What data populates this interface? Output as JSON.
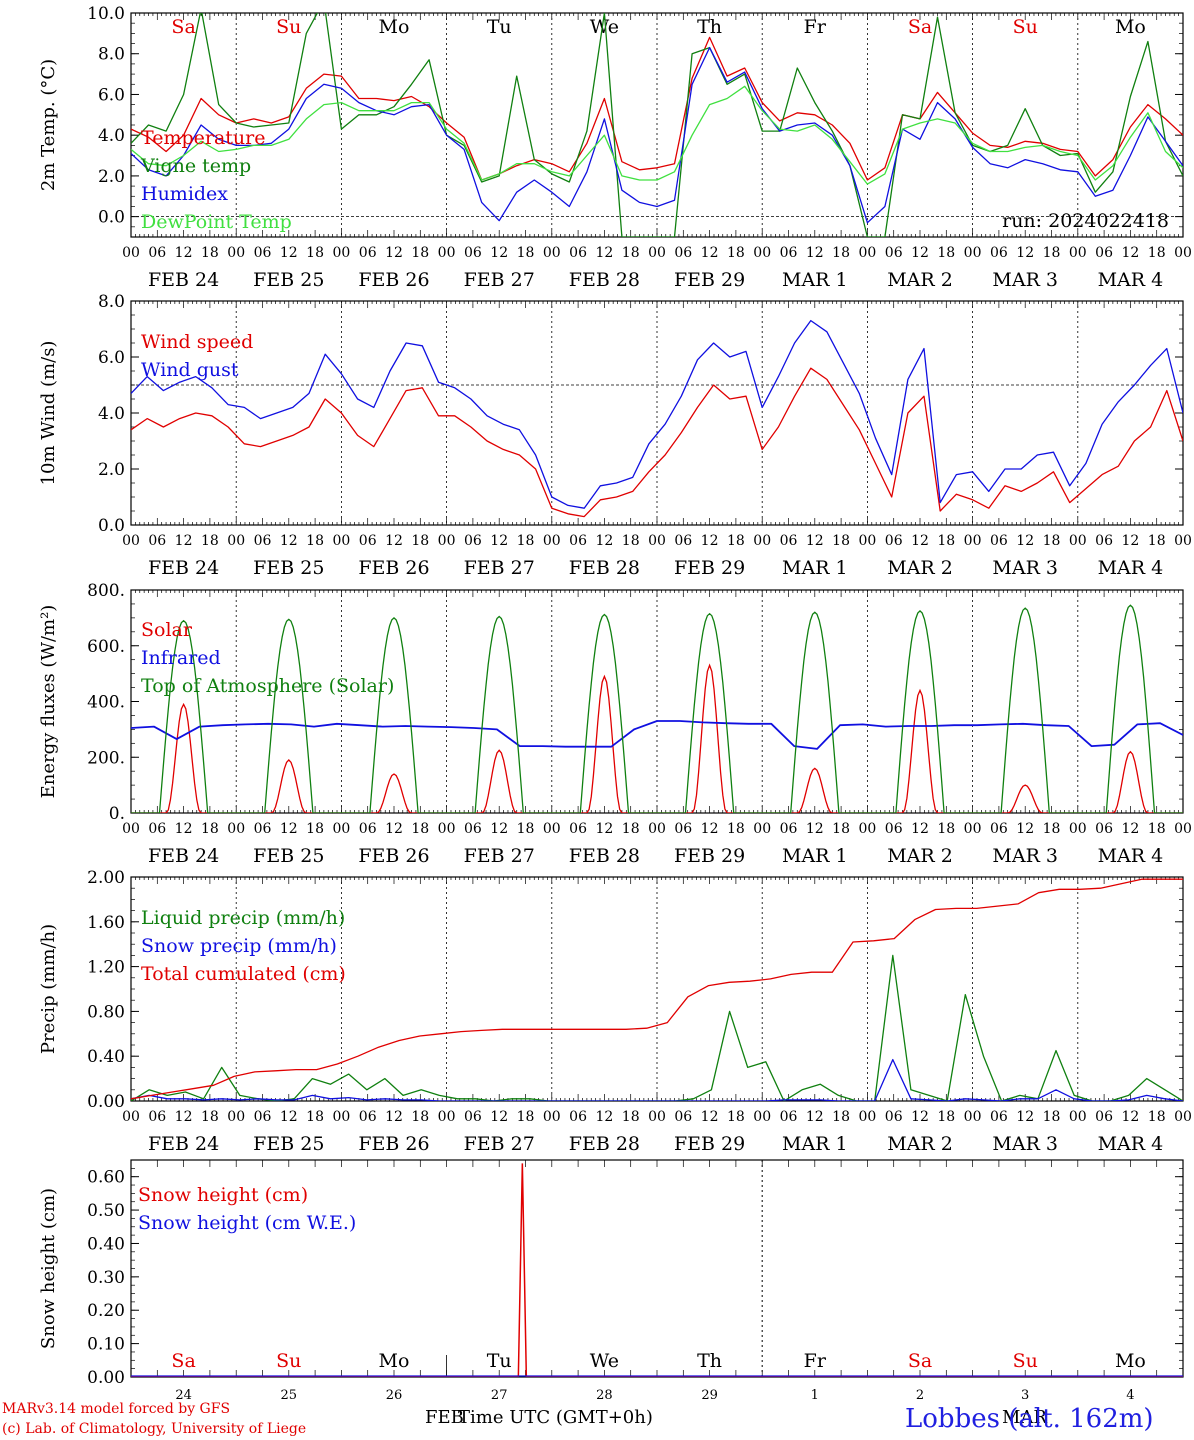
{
  "days": [
    "Sa",
    "Su",
    "Mo",
    "Tu",
    "We",
    "Th",
    "Fr",
    "Sa",
    "Su",
    "Mo"
  ],
  "day_colors": [
    "#e00000",
    "#e00000",
    "#000000",
    "#000000",
    "#000000",
    "#000000",
    "#000000",
    "#e00000",
    "#e00000",
    "#000000"
  ],
  "date_labels": [
    "FEB 24",
    "FEB 25",
    "FEB 26",
    "FEB 27",
    "FEB 28",
    "FEB 29",
    "MAR  1",
    "MAR  2",
    "MAR  3",
    "MAR  4"
  ],
  "hour_labels": [
    "00",
    "06",
    "12",
    "18"
  ],
  "last_hour_label": "00",
  "day_numbers": [
    "24",
    "25",
    "26",
    "27",
    "28",
    "29",
    "1",
    "2",
    "3",
    "4"
  ],
  "chart_data": [
    {
      "type": "line",
      "ylabel": "2m Temp. (°C)",
      "ylim": [
        -1,
        10
      ],
      "ticks": [
        "0.0",
        "2.0",
        "4.0",
        "6.0",
        "8.0",
        "10.0"
      ],
      "tick_values": [
        0,
        2,
        4,
        6,
        8,
        10
      ],
      "ref_line": 0,
      "run_label": "run: 2024022418",
      "series": [
        {
          "name": "Temperature",
          "color": "#e00000",
          "values": [
            4.3,
            3.9,
            3.2,
            4.0,
            5.8,
            5.0,
            4.6,
            4.8,
            4.6,
            4.9,
            6.3,
            7.0,
            6.9,
            5.8,
            5.8,
            5.7,
            5.9,
            5.4,
            4.6,
            3.9,
            1.8,
            2.1,
            2.5,
            2.8,
            2.6,
            2.2,
            3.6,
            5.8,
            2.7,
            2.3,
            2.4,
            2.6,
            6.8,
            8.8,
            6.9,
            7.3,
            5.6,
            4.7,
            5.1,
            5.0,
            4.5,
            3.6,
            1.8,
            2.4,
            5.0,
            4.8,
            6.1,
            5.1,
            4.1,
            3.5,
            3.4,
            3.7,
            3.6,
            3.3,
            3.2,
            2.0,
            2.8,
            4.4,
            5.5,
            4.8,
            4.0
          ]
        },
        {
          "name": "Vigne temp",
          "color": "#108010",
          "values": [
            3.6,
            4.5,
            4.2,
            6.0,
            10.2,
            5.5,
            4.6,
            4.4,
            4.5,
            4.6,
            9.0,
            10.6,
            4.3,
            5.0,
            5.0,
            5.4,
            6.5,
            7.7,
            4.0,
            3.5,
            1.7,
            2.0,
            6.9,
            2.8,
            2.1,
            1.7,
            4.2,
            10.0,
            -1.0,
            -1.0,
            -1.0,
            -1.0,
            8.0,
            8.3,
            6.5,
            7.0,
            4.2,
            4.2,
            7.3,
            5.6,
            4.2,
            2.5,
            -1.0,
            -1.0,
            5.0,
            4.8,
            9.8,
            5.1,
            3.5,
            3.2,
            3.5,
            5.3,
            3.5,
            3.0,
            3.1,
            1.2,
            2.2,
            5.9,
            8.6,
            3.7,
            2.0
          ]
        },
        {
          "name": "Humidex",
          "color": "#1010e0",
          "values": [
            3.1,
            2.3,
            2.0,
            3.0,
            4.5,
            3.8,
            3.5,
            3.5,
            3.6,
            4.3,
            5.8,
            6.5,
            6.3,
            5.6,
            5.2,
            5.0,
            5.4,
            5.5,
            4.0,
            3.3,
            0.7,
            -0.2,
            1.2,
            1.8,
            1.2,
            0.5,
            2.2,
            4.8,
            1.3,
            0.7,
            0.5,
            0.8,
            6.5,
            8.3,
            6.6,
            7.1,
            5.3,
            4.2,
            4.5,
            4.6,
            4.0,
            2.5,
            -0.3,
            0.5,
            4.3,
            3.8,
            5.6,
            4.8,
            3.4,
            2.6,
            2.4,
            2.8,
            2.6,
            2.3,
            2.2,
            1.0,
            1.3,
            3.0,
            4.9,
            3.7,
            2.5
          ]
        },
        {
          "name": "DewPoint Temp",
          "color": "#40e040",
          "values": [
            3.3,
            2.6,
            2.5,
            3.0,
            3.7,
            3.2,
            3.3,
            3.5,
            3.5,
            3.8,
            4.8,
            5.5,
            5.6,
            5.2,
            5.2,
            5.2,
            5.6,
            5.6,
            4.3,
            3.6,
            1.8,
            2.1,
            2.6,
            2.6,
            2.2,
            2.0,
            3.0,
            4.0,
            2.0,
            1.8,
            1.8,
            2.2,
            4.0,
            5.5,
            5.8,
            6.4,
            5.2,
            4.3,
            4.2,
            4.5,
            3.8,
            2.7,
            1.6,
            2.1,
            4.3,
            4.6,
            4.8,
            4.6,
            3.6,
            3.2,
            3.2,
            3.4,
            3.5,
            3.2,
            3.0,
            1.8,
            2.5,
            3.9,
            5.1,
            3.2,
            2.4
          ]
        }
      ]
    },
    {
      "type": "line",
      "ylabel": "10m Wind (m/s)",
      "ylim": [
        0,
        8
      ],
      "ticks": [
        "0.0",
        "2.0",
        "4.0",
        "6.0",
        "8.0"
      ],
      "tick_values": [
        0,
        2,
        4,
        6,
        8
      ],
      "ref_line": 5,
      "series": [
        {
          "name": "Wind speed",
          "color": "#e00000",
          "values": [
            3.4,
            3.8,
            3.5,
            3.8,
            4.0,
            3.9,
            3.5,
            2.9,
            2.8,
            3.0,
            3.2,
            3.5,
            4.5,
            4.0,
            3.2,
            2.8,
            3.8,
            4.8,
            4.9,
            3.9,
            3.9,
            3.5,
            3.0,
            2.7,
            2.5,
            2.0,
            0.6,
            0.4,
            0.3,
            0.9,
            1.0,
            1.2,
            1.9,
            2.5,
            3.3,
            4.2,
            5.0,
            4.5,
            4.6,
            2.7,
            3.5,
            4.6,
            5.6,
            5.2,
            4.3,
            3.4,
            2.2,
            1.0,
            4.0,
            4.6,
            0.5,
            1.1,
            0.9,
            0.6,
            1.4,
            1.2,
            1.5,
            1.9,
            0.8,
            1.3,
            1.8,
            2.1,
            3.0,
            3.5,
            4.8,
            3.0
          ]
        },
        {
          "name": "Wind gust",
          "color": "#1010e0",
          "values": [
            4.7,
            5.3,
            4.8,
            5.1,
            5.3,
            4.9,
            4.3,
            4.2,
            3.8,
            4.0,
            4.2,
            4.7,
            6.1,
            5.4,
            4.5,
            4.2,
            5.5,
            6.5,
            6.4,
            5.1,
            4.9,
            4.5,
            3.9,
            3.6,
            3.4,
            2.5,
            1.0,
            0.7,
            0.6,
            1.4,
            1.5,
            1.7,
            2.9,
            3.6,
            4.6,
            5.9,
            6.5,
            6.0,
            6.2,
            4.2,
            5.3,
            6.5,
            7.3,
            6.9,
            5.8,
            4.7,
            3.1,
            1.8,
            5.2,
            6.3,
            0.8,
            1.8,
            1.9,
            1.2,
            2.0,
            2.0,
            2.5,
            2.6,
            1.4,
            2.2,
            3.6,
            4.4,
            5.0,
            5.7,
            6.3,
            4.0
          ]
        }
      ]
    },
    {
      "type": "line",
      "ylabel": "Energy fluxes (W/m²)",
      "ylim": [
        0,
        800
      ],
      "ticks": [
        "0.",
        "200.",
        "400.",
        "600.",
        "800."
      ],
      "tick_values": [
        0,
        200,
        400,
        600,
        800
      ],
      "series": [
        {
          "name": "Solar",
          "color": "#e00000",
          "peaks": [
            390,
            190,
            140,
            225,
            490,
            530,
            160,
            440,
            100,
            220
          ]
        },
        {
          "name": "Infrared",
          "color": "#1010e0",
          "values": [
            305,
            310,
            265,
            310,
            315,
            318,
            320,
            318,
            310,
            320,
            315,
            310,
            312,
            310,
            308,
            305,
            300,
            240,
            240,
            238,
            238,
            238,
            300,
            330,
            330,
            325,
            322,
            320,
            320,
            240,
            230,
            315,
            318,
            310,
            312,
            312,
            315,
            315,
            318,
            320,
            315,
            312,
            240,
            245,
            318,
            322,
            280
          ]
        },
        {
          "name": "Top of Atmosphere (Solar)",
          "color": "#108010",
          "peaks": [
            690,
            695,
            700,
            705,
            712,
            715,
            720,
            725,
            735,
            745
          ]
        }
      ]
    },
    {
      "type": "line",
      "ylabel": "Precip (mm/h)",
      "ylim": [
        0,
        2
      ],
      "ticks": [
        "0.00",
        "0.40",
        "0.80",
        "1.20",
        "1.60",
        "2.00"
      ],
      "tick_values": [
        0,
        0.4,
        0.8,
        1.2,
        1.6,
        2.0
      ],
      "series": [
        {
          "name": "Liquid precip (mm/h)",
          "color": "#108010",
          "values": [
            0,
            0.1,
            0.05,
            0.08,
            0.02,
            0.3,
            0.05,
            0.02,
            0,
            0.02,
            0.2,
            0.15,
            0.24,
            0.1,
            0.2,
            0.05,
            0.1,
            0.05,
            0.02,
            0.02,
            0,
            0.02,
            0.02,
            0,
            0,
            0,
            0,
            0,
            0,
            0,
            0,
            0.02,
            0.1,
            0.8,
            0.3,
            0.35,
            0,
            0.1,
            0.15,
            0.05,
            0,
            0,
            1.3,
            0.1,
            0.05,
            0,
            0.95,
            0.4,
            0,
            0.05,
            0.02,
            0.45,
            0.05,
            0,
            0,
            0.05,
            0.2,
            0.1,
            0
          ]
        },
        {
          "name": "Snow precip (mm/h)",
          "color": "#1010e0",
          "values": [
            0.02,
            0.05,
            0.02,
            0.02,
            0.01,
            0.02,
            0.01,
            0.02,
            0.01,
            0.01,
            0.05,
            0.02,
            0.03,
            0.01,
            0.02,
            0.01,
            0.01,
            0,
            0,
            0,
            0,
            0,
            0,
            0,
            0,
            0,
            0,
            0,
            0,
            0,
            0,
            0,
            0,
            0,
            0,
            0,
            0.01,
            0.01,
            0.01,
            0,
            0,
            0,
            0.37,
            0.02,
            0.01,
            0,
            0.02,
            0.01,
            0,
            0.02,
            0.02,
            0.1,
            0.02,
            0,
            0,
            0.01,
            0.05,
            0.02,
            0
          ]
        },
        {
          "name": "Total cumulated (cm)",
          "color": "#e00000",
          "values": [
            0.02,
            0.05,
            0.08,
            0.11,
            0.14,
            0.22,
            0.26,
            0.27,
            0.28,
            0.28,
            0.33,
            0.4,
            0.48,
            0.54,
            0.58,
            0.6,
            0.62,
            0.63,
            0.64,
            0.64,
            0.64,
            0.64,
            0.64,
            0.64,
            0.64,
            0.65,
            0.7,
            0.93,
            1.03,
            1.06,
            1.07,
            1.09,
            1.13,
            1.15,
            1.15,
            1.42,
            1.43,
            1.45,
            1.62,
            1.71,
            1.72,
            1.72,
            1.74,
            1.76,
            1.86,
            1.89,
            1.89,
            1.9,
            1.94,
            1.98,
            1.98,
            1.98
          ]
        }
      ]
    },
    {
      "type": "line",
      "ylabel": "Snow height (cm)",
      "ylim": [
        0,
        0.65
      ],
      "ticks": [
        "0.00",
        "0.10",
        "0.20",
        "0.30",
        "0.40",
        "0.50",
        "0.60"
      ],
      "tick_values": [
        0,
        0.1,
        0.2,
        0.3,
        0.4,
        0.5,
        0.6
      ],
      "spike_day": 3.72,
      "spike_value": 0.64,
      "series": [
        {
          "name": "Snow height (cm)",
          "color": "#e00000"
        },
        {
          "name": "Snow height (cm W.E.)",
          "color": "#1010e0"
        }
      ]
    }
  ],
  "footer": {
    "credit1": "MARv3.14 model forced by GFS",
    "credit2": "(c) Lab. of Climatology, University of Liege",
    "xlabel": "Time UTC (GMT+0h)",
    "feb_label": "FEB",
    "mar_label": "MAR",
    "station": "Lobbes (alt. 162m)"
  }
}
